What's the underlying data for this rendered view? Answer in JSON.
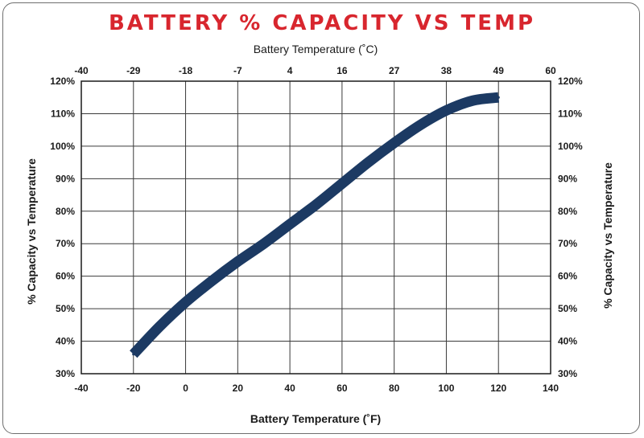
{
  "chart_data": {
    "type": "line",
    "title": "BATTERY % CAPACITY VS TEMP",
    "xlabel": "Battery Temperature (˚F)",
    "x2label": "Battery Temperature (˚C)",
    "ylabel": "% Capacity vs Temperature",
    "y2label": "% Capacity vs Temperature",
    "xlim": [
      -40,
      140
    ],
    "ylim": [
      30,
      120
    ],
    "x_ticks": [
      "-40",
      "-20",
      "0",
      "20",
      "40",
      "60",
      "80",
      "100",
      "120",
      "140"
    ],
    "x2_ticks": [
      "-40",
      "-29",
      "-18",
      "-7",
      "4",
      "16",
      "27",
      "38",
      "49",
      "60"
    ],
    "y_ticks": [
      "30%",
      "40%",
      "50%",
      "60%",
      "70%",
      "80%",
      "90%",
      "100%",
      "110%",
      "120%"
    ],
    "grid": true,
    "line_color": "#1c3a63",
    "series": [
      {
        "x": [
          -20,
          -10,
          0,
          10,
          20,
          30,
          40,
          50,
          60,
          70,
          80,
          90,
          100,
          110,
          120
        ],
        "y": [
          36,
          44.5,
          52,
          58.5,
          64.5,
          70,
          76,
          82,
          88.5,
          95,
          101,
          106.5,
          111,
          114,
          115
        ]
      }
    ]
  }
}
